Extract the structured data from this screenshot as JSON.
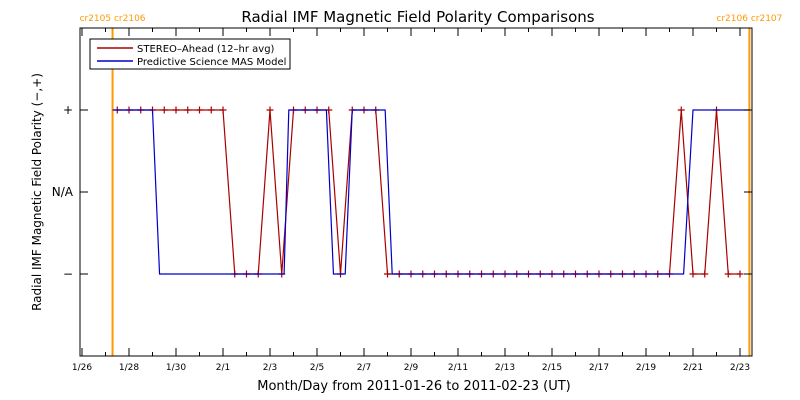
{
  "chart_data": {
    "type": "line",
    "title": "Radial IMF Magnetic Field Polarity Comparisons",
    "xlabel": "Month/Day from 2011-01-26 to 2011-02-23 (UT)",
    "ylabel": "Radial IMF Magnetic Field Polarity (−,+)",
    "xlim": [
      0,
      28.7
    ],
    "ylim": [
      -2,
      2
    ],
    "x_ticks": [
      {
        "x": 0,
        "label": "1/26"
      },
      {
        "x": 2,
        "label": "1/28"
      },
      {
        "x": 4,
        "label": "1/30"
      },
      {
        "x": 6,
        "label": "2/1"
      },
      {
        "x": 8,
        "label": "2/3"
      },
      {
        "x": 10,
        "label": "2/5"
      },
      {
        "x": 12,
        "label": "2/7"
      },
      {
        "x": 14,
        "label": "2/9"
      },
      {
        "x": 16,
        "label": "2/11"
      },
      {
        "x": 18,
        "label": "2/13"
      },
      {
        "x": 20,
        "label": "2/15"
      },
      {
        "x": 22,
        "label": "2/17"
      },
      {
        "x": 24,
        "label": "2/19"
      },
      {
        "x": 26,
        "label": "2/21"
      },
      {
        "x": 28,
        "label": "2/23"
      }
    ],
    "y_ticks": [
      {
        "y": 1,
        "label": "+"
      },
      {
        "y": 0,
        "label": "N/A"
      },
      {
        "y": -1,
        "label": "−"
      }
    ],
    "legend": {
      "position": "top-left",
      "entries": [
        {
          "label": "STEREO–Ahead (12–hr avg)",
          "color": "#aa0000"
        },
        {
          "label": "Predictive Science MAS Model",
          "color": "#0000cc"
        }
      ]
    },
    "carrington_markers": [
      {
        "x": 1.3,
        "left_label": "cr2105",
        "right_label": "cr2106"
      },
      {
        "x": 28.4,
        "left_label": "cr2106",
        "right_label": "cr2107"
      }
    ],
    "marker_color": "#ff9900",
    "series": [
      {
        "name": "STEREO–Ahead (12–hr avg)",
        "color": "#aa0000",
        "marker": "+",
        "points": [
          [
            1.5,
            1
          ],
          [
            2.0,
            1
          ],
          [
            2.5,
            1
          ],
          [
            3.0,
            1
          ],
          [
            3.5,
            1
          ],
          [
            4.0,
            1
          ],
          [
            4.5,
            1
          ],
          [
            5.0,
            1
          ],
          [
            5.5,
            1
          ],
          [
            6.0,
            1
          ],
          [
            6.5,
            -1
          ],
          [
            7.0,
            -1
          ],
          [
            7.5,
            -1
          ],
          [
            8.0,
            1
          ],
          [
            8.5,
            -1
          ],
          [
            9.0,
            1
          ],
          [
            9.5,
            1
          ],
          [
            10.0,
            1
          ],
          [
            10.5,
            1
          ],
          [
            11.0,
            -1
          ],
          [
            11.5,
            1
          ],
          [
            12.0,
            1
          ],
          [
            12.5,
            1
          ],
          [
            13.0,
            -1
          ],
          [
            13.5,
            -1
          ],
          [
            14.0,
            -1
          ],
          [
            14.5,
            -1
          ],
          [
            15.0,
            -1
          ],
          [
            15.5,
            -1
          ],
          [
            16.0,
            -1
          ],
          [
            16.5,
            -1
          ],
          [
            17.0,
            -1
          ],
          [
            17.5,
            -1
          ],
          [
            18.0,
            -1
          ],
          [
            18.5,
            -1
          ],
          [
            19.0,
            -1
          ],
          [
            19.5,
            -1
          ],
          [
            20.0,
            -1
          ],
          [
            20.5,
            -1
          ],
          [
            21.0,
            -1
          ],
          [
            21.5,
            -1
          ],
          [
            22.0,
            -1
          ],
          [
            22.5,
            -1
          ],
          [
            23.0,
            -1
          ],
          [
            23.5,
            -1
          ],
          [
            24.0,
            -1
          ],
          [
            24.5,
            -1
          ],
          [
            25.0,
            -1
          ],
          [
            25.5,
            1
          ],
          [
            26.0,
            -1
          ],
          [
            26.5,
            -1
          ],
          [
            27.0,
            1
          ],
          [
            27.5,
            -1
          ],
          [
            28.0,
            -1
          ]
        ]
      },
      {
        "name": "Predictive Science MAS Model",
        "color": "#0000cc",
        "points": [
          [
            1.3,
            1
          ],
          [
            3.0,
            1
          ],
          [
            3.3,
            -1
          ],
          [
            8.6,
            -1
          ],
          [
            8.8,
            1
          ],
          [
            10.4,
            1
          ],
          [
            10.7,
            -1
          ],
          [
            11.2,
            -1
          ],
          [
            11.5,
            1
          ],
          [
            12.9,
            1
          ],
          [
            13.2,
            -1
          ],
          [
            25.6,
            -1
          ],
          [
            26.0,
            1
          ],
          [
            28.4,
            1
          ]
        ]
      }
    ]
  }
}
